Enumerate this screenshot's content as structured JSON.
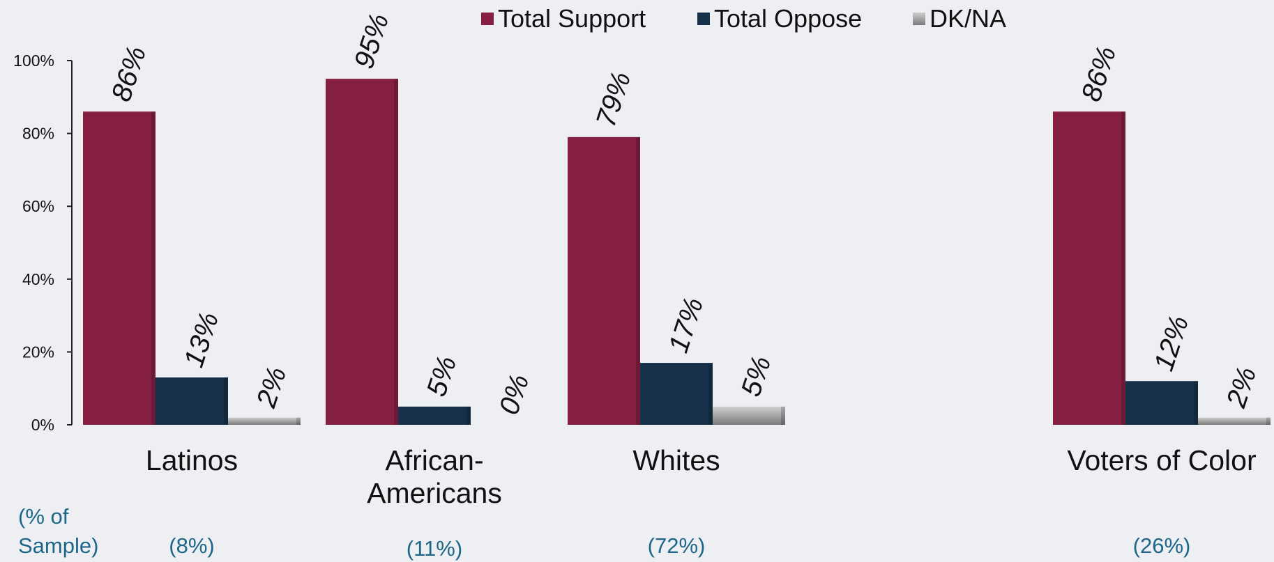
{
  "chart_data": {
    "type": "bar",
    "categories": [
      "Latinos",
      "African-\nAmericans",
      "Whites",
      "Voters of Color"
    ],
    "series": [
      {
        "name": "Total Support",
        "values": [
          86,
          95,
          79,
          86
        ],
        "color": "#862043"
      },
      {
        "name": "Total Oppose",
        "values": [
          13,
          5,
          17,
          12
        ],
        "color": "#17314a"
      },
      {
        "name": "DK/NA",
        "values": [
          2,
          0,
          5,
          2
        ],
        "color": "#9a9a9a"
      }
    ],
    "data_labels": [
      [
        "86%",
        "13%",
        "2%"
      ],
      [
        "95%",
        "5%",
        "0%"
      ],
      [
        "79%",
        "17%",
        "5%"
      ],
      [
        "86%",
        "12%",
        "2%"
      ]
    ],
    "ylim": [
      0,
      100
    ],
    "yticks": [
      0,
      20,
      40,
      60,
      80,
      100
    ],
    "ytick_labels": [
      "0%",
      "20%",
      "40%",
      "60%",
      "80%",
      "100%"
    ],
    "legend_position": "top-center",
    "grid": false,
    "sample_header": "(% of\nSample)",
    "sample_sizes": [
      "(8%)",
      "(11%)",
      "(72%)",
      "(26%)"
    ]
  }
}
